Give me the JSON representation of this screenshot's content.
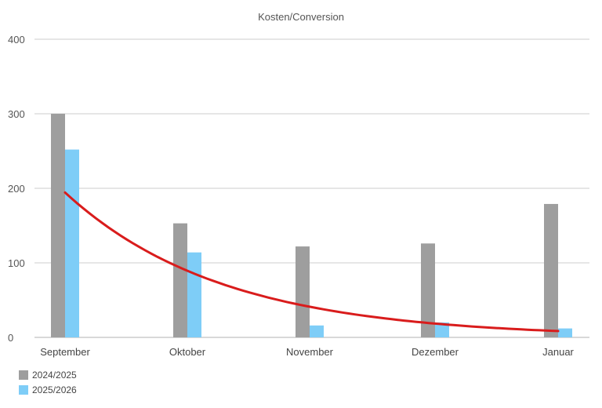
{
  "chart_data": {
    "type": "bar",
    "title": "Kosten/Conversion",
    "categories": [
      "September",
      "Oktober",
      "November",
      "Dezember",
      "Januar"
    ],
    "series": [
      {
        "name": "2024/2025",
        "color": "#9e9e9e",
        "values": [
          300,
          153,
          122,
          126,
          179
        ]
      },
      {
        "name": "2025/2026",
        "color": "#7ecdf7",
        "values": [
          252,
          114,
          16,
          20,
          12
        ]
      }
    ],
    "trendline": {
      "type": "exponential",
      "color": "#d91c1c",
      "series": "2025/2026"
    },
    "ylim": [
      0,
      400
    ],
    "yticks": [
      0,
      100,
      200,
      300,
      400
    ],
    "grid": true,
    "legend_position": "bottom-left"
  }
}
